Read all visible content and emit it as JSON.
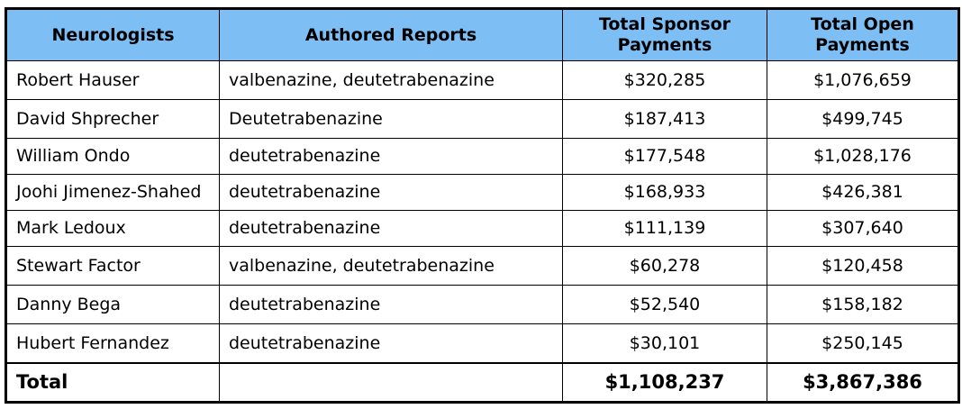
{
  "table": {
    "headers": {
      "neurologists": "Neurologists",
      "authored_reports": "Authored Reports",
      "total_sponsor_line1": "Total Sponsor",
      "total_sponsor_line2": "Payments",
      "total_open_line1": "Total Open",
      "total_open_line2": "Payments"
    },
    "rows": [
      {
        "name": "Robert Hauser",
        "reports": "valbenazine, deutetrabenazine",
        "sponsor": "$320,285",
        "open": "$1,076,659"
      },
      {
        "name": "David Shprecher",
        "reports": "Deutetrabenazine",
        "sponsor": "$187,413",
        "open": "$499,745"
      },
      {
        "name": "William Ondo",
        "reports": "deutetrabenazine",
        "sponsor": "$177,548",
        "open": "$1,028,176"
      },
      {
        "name": "Joohi Jimenez-Shahed",
        "reports": "deutetrabenazine",
        "sponsor": "$168,933",
        "open": "$426,381"
      },
      {
        "name": "Mark Ledoux",
        "reports": "deutetrabenazine",
        "sponsor": "$111,139",
        "open": "$307,640"
      },
      {
        "name": "Stewart Factor",
        "reports": "valbenazine, deutetrabenazine",
        "sponsor": "$60,278",
        "open": "$120,458"
      },
      {
        "name": "Danny Bega",
        "reports": "deutetrabenazine",
        "sponsor": "$52,540",
        "open": "$158,182"
      },
      {
        "name": "Hubert Fernandez",
        "reports": "deutetrabenazine",
        "sponsor": "$30,101",
        "open": "$250,145"
      }
    ],
    "total": {
      "label": "Total",
      "reports": "",
      "sponsor": "$1,108,237",
      "open": "$3,867,386"
    }
  },
  "colors": {
    "header_background": "#7dbff5",
    "border": "#000000"
  }
}
